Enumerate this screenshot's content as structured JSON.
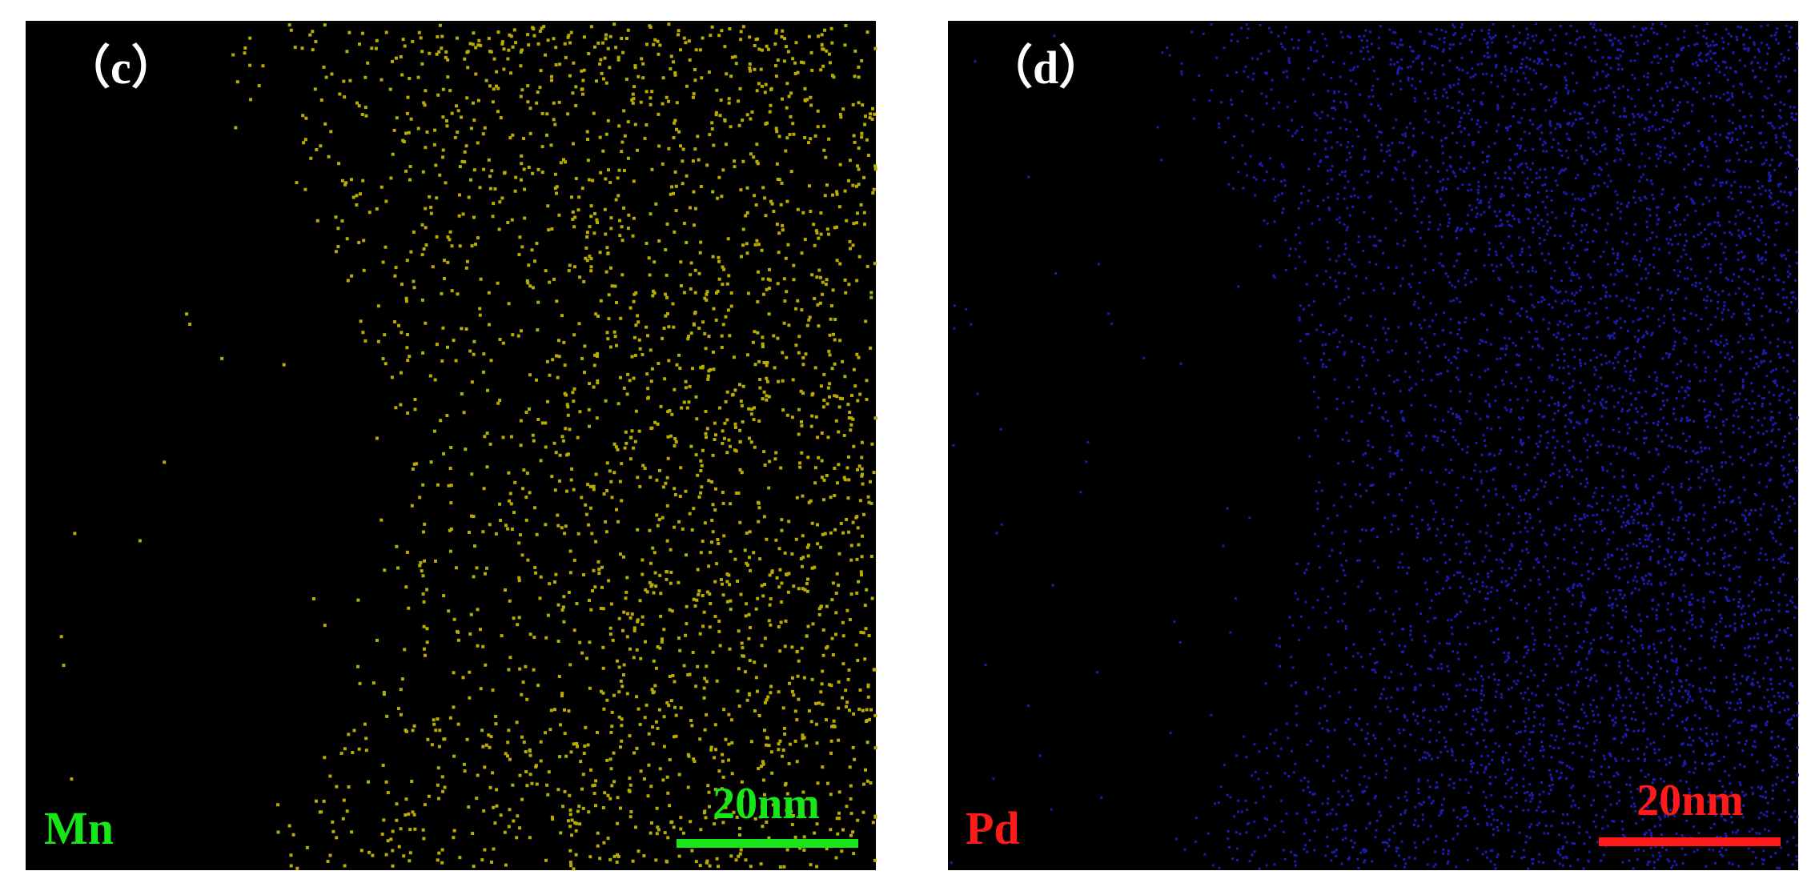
{
  "panels": [
    {
      "label": "（c）",
      "element": "Mn",
      "scale_bar": "20nm"
    },
    {
      "label": "（d）",
      "element": "Pd",
      "scale_bar": "20nm"
    }
  ]
}
